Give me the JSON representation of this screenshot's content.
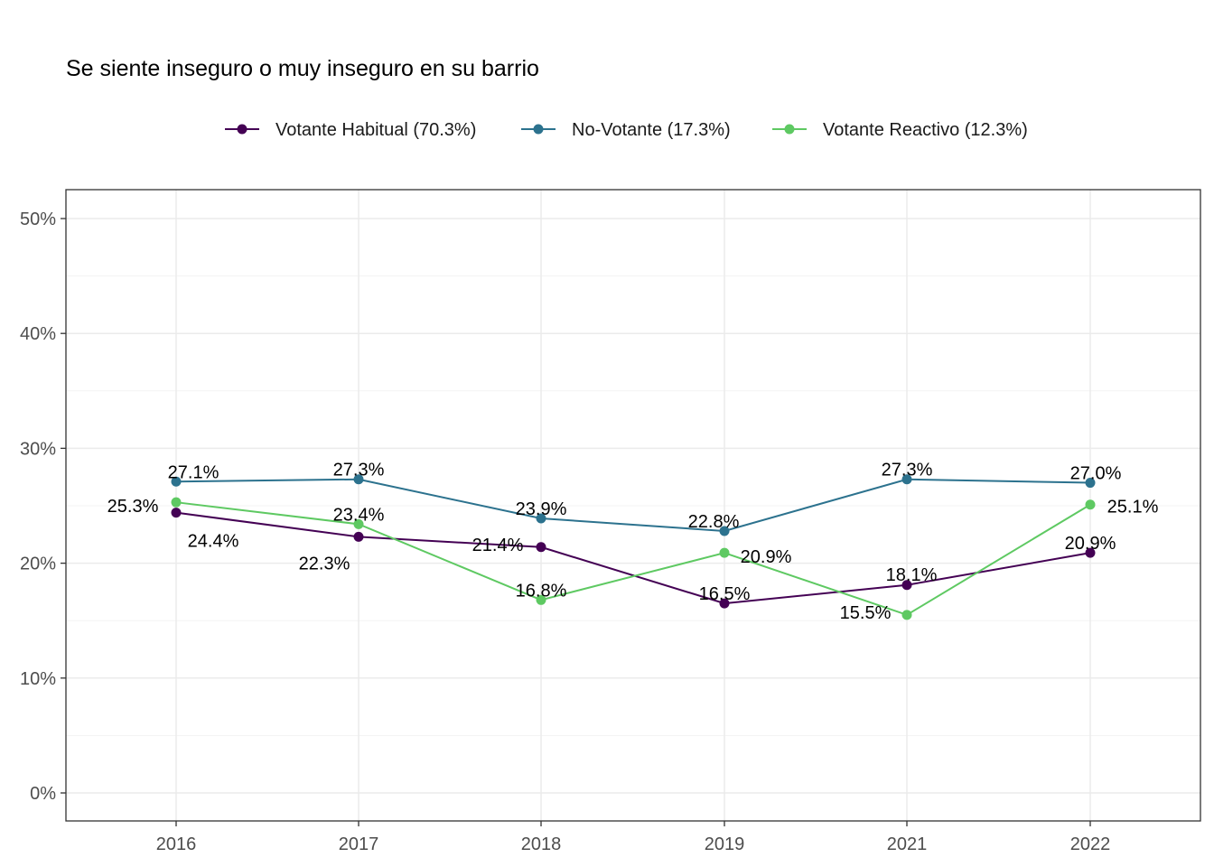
{
  "chart_data": {
    "type": "line",
    "title": "Se siente inseguro o muy inseguro en su barrio",
    "xlabel": "",
    "ylabel": "",
    "categories": [
      "2016",
      "2017",
      "2018",
      "2019",
      "2021",
      "2022"
    ],
    "ylim": [
      0,
      50
    ],
    "y_ticks": [
      0,
      10,
      20,
      30,
      40,
      50
    ],
    "y_tick_labels": [
      "0%",
      "10%",
      "20%",
      "30%",
      "40%",
      "50%"
    ],
    "grid": true,
    "legend_position": "top",
    "series": [
      {
        "name": "Votante Habitual (70.3%)",
        "color": "#440154",
        "values": [
          24.4,
          22.3,
          21.4,
          16.5,
          18.1,
          20.9
        ],
        "labels": [
          "24.4%",
          "22.3%",
          "21.4%",
          "16.5%",
          "18.1%",
          "20.9%"
        ]
      },
      {
        "name": "No-Votante (17.3%)",
        "color": "#2c728e",
        "values": [
          27.1,
          27.3,
          23.9,
          22.8,
          27.3,
          27.0
        ],
        "labels": [
          "27.1%",
          "27.3%",
          "23.9%",
          "22.8%",
          "27.3%",
          "27.0%"
        ]
      },
      {
        "name": "Votante Reactivo (12.3%)",
        "color": "#5ec962",
        "values": [
          25.3,
          23.4,
          16.8,
          20.9,
          15.5,
          25.1
        ],
        "labels": [
          "25.3%",
          "23.4%",
          "16.8%",
          "20.9%",
          "15.5%",
          "25.1%"
        ]
      }
    ]
  }
}
